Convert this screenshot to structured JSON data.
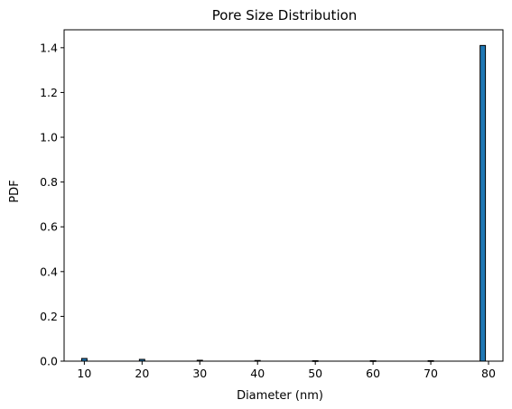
{
  "chart_data": {
    "type": "bar",
    "title": "Pore Size Distribution",
    "xlabel": "Diameter (nm)",
    "ylabel": "PDF",
    "xlim": [
      6.5,
      82.5
    ],
    "ylim": [
      0,
      1.48
    ],
    "xticks": [
      10,
      20,
      30,
      40,
      50,
      60,
      70,
      80
    ],
    "yticks": [
      0.0,
      0.2,
      0.4,
      0.6,
      0.8,
      1.0,
      1.2,
      1.4
    ],
    "ytick_labels": [
      "0.0",
      "0.2",
      "0.4",
      "0.6",
      "0.8",
      "1.0",
      "1.2",
      "1.4"
    ],
    "bin_width": 0.93,
    "bars": [
      {
        "x": 10.0,
        "value": 0.012
      },
      {
        "x": 20.0,
        "value": 0.008
      },
      {
        "x": 30.0,
        "value": 0.004
      },
      {
        "x": 40.0,
        "value": 0.003
      },
      {
        "x": 50.0,
        "value": 0.002
      },
      {
        "x": 60.0,
        "value": 0.002
      },
      {
        "x": 70.0,
        "value": 0.002
      },
      {
        "x": 79.0,
        "value": 1.41
      }
    ],
    "grid": false,
    "colors": {
      "bar_fill": "#1f77b4",
      "bar_edge": "#000000",
      "axes": "#000000"
    }
  }
}
